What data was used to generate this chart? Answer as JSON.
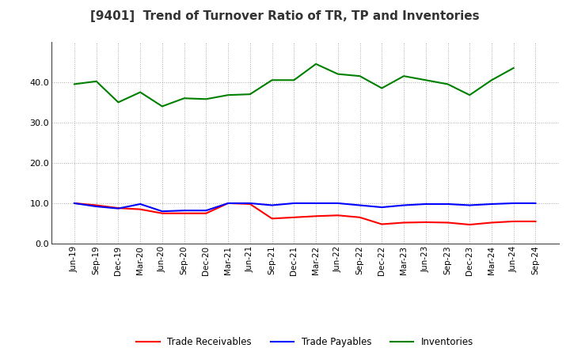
{
  "title": "[9401]  Trend of Turnover Ratio of TR, TP and Inventories",
  "x_labels": [
    "Jun-19",
    "Sep-19",
    "Dec-19",
    "Mar-20",
    "Jun-20",
    "Sep-20",
    "Dec-20",
    "Mar-21",
    "Jun-21",
    "Sep-21",
    "Dec-21",
    "Mar-22",
    "Jun-22",
    "Sep-22",
    "Dec-22",
    "Mar-23",
    "Jun-23",
    "Sep-23",
    "Dec-23",
    "Mar-24",
    "Jun-24",
    "Sep-24"
  ],
  "trade_receivables": [
    10.0,
    9.5,
    8.8,
    8.5,
    7.5,
    7.5,
    7.5,
    10.0,
    9.8,
    6.2,
    6.5,
    6.8,
    7.0,
    6.5,
    4.8,
    5.2,
    5.3,
    5.2,
    4.7,
    5.2,
    5.5,
    5.5
  ],
  "trade_payables": [
    10.0,
    9.2,
    8.7,
    9.8,
    8.0,
    8.2,
    8.2,
    10.0,
    10.0,
    9.5,
    10.0,
    10.0,
    10.0,
    9.5,
    9.0,
    9.5,
    9.8,
    9.8,
    9.5,
    9.8,
    10.0,
    10.0
  ],
  "inventories": [
    39.5,
    40.2,
    35.0,
    37.5,
    34.0,
    36.0,
    35.8,
    36.8,
    37.0,
    40.5,
    40.5,
    44.5,
    42.0,
    41.5,
    38.5,
    41.5,
    40.5,
    39.5,
    36.8,
    40.5,
    43.5,
    null
  ],
  "color_tr": "#ff0000",
  "color_tp": "#0000ff",
  "color_inv": "#008000",
  "ylim": [
    0,
    50
  ],
  "yticks": [
    0.0,
    10.0,
    20.0,
    30.0,
    40.0
  ],
  "legend_labels": [
    "Trade Receivables",
    "Trade Payables",
    "Inventories"
  ],
  "bg_color": "#ffffff",
  "plot_bg_color": "#ffffff",
  "title_fontsize": 11,
  "tick_fontsize": 7.5,
  "linewidth": 1.5
}
